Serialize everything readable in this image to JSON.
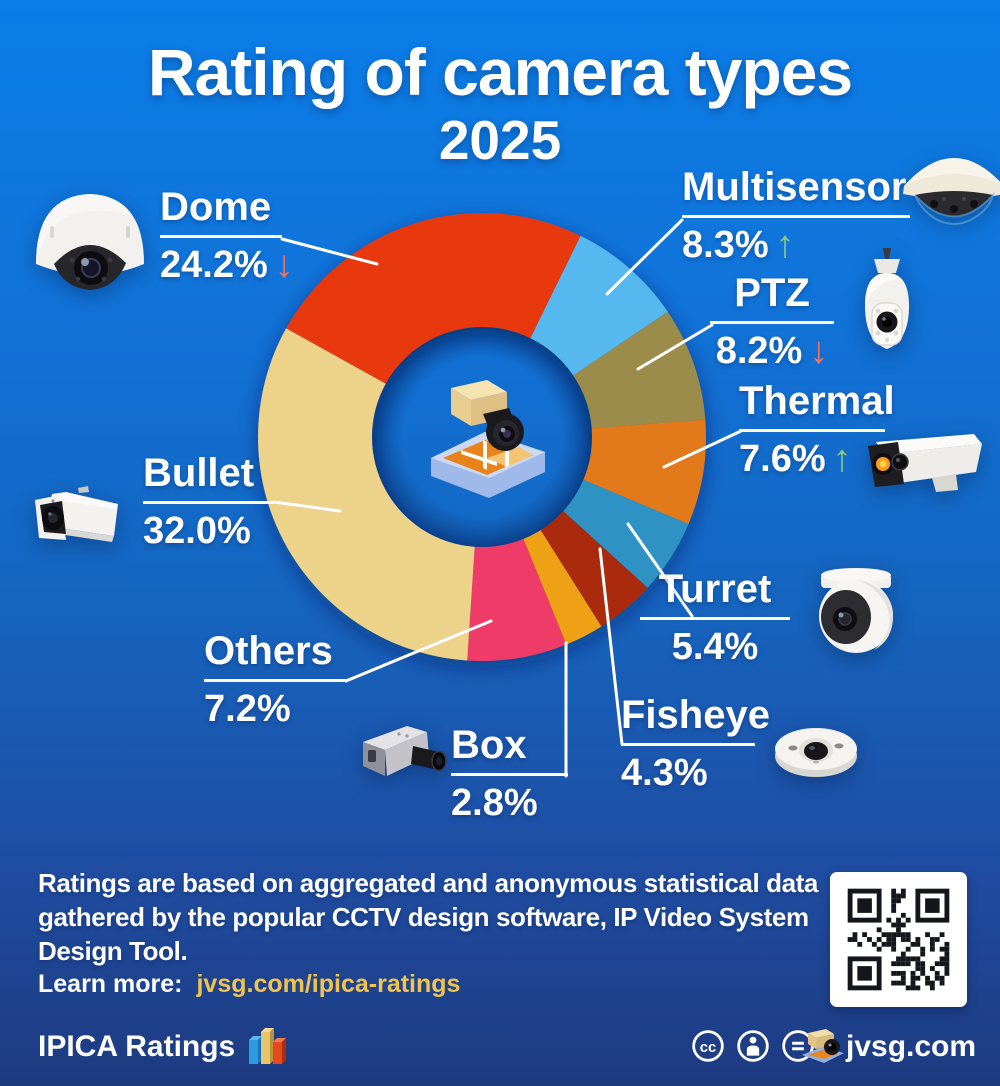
{
  "title": {
    "main": "Rating of camera types",
    "year": "2025"
  },
  "chart_data": {
    "type": "pie",
    "subtype": "donut",
    "title": "Rating of camera types 2025",
    "start_angle_deg": -61,
    "legend_position": "around",
    "slices": [
      {
        "label": "Dome",
        "value": 24.2,
        "display": "24.2%",
        "trend": "down",
        "arrow": "↓",
        "color": "#e8390e"
      },
      {
        "label": "Multisensor",
        "value": 8.3,
        "display": "8.3%",
        "trend": "up",
        "arrow": "↑",
        "color": "#55b8ee"
      },
      {
        "label": "PTZ",
        "value": 8.2,
        "display": "8.2%",
        "trend": "down",
        "arrow": "↓",
        "color": "#9c8c4b"
      },
      {
        "label": "Thermal",
        "value": 7.6,
        "display": "7.6%",
        "trend": "up",
        "arrow": "↑",
        "color": "#e27a1b"
      },
      {
        "label": "Turret",
        "value": 5.4,
        "display": "5.4%",
        "trend": "none",
        "arrow": "",
        "color": "#2e93c4"
      },
      {
        "label": "Fisheye",
        "value": 4.3,
        "display": "4.3%",
        "trend": "none",
        "arrow": "",
        "color": "#a92c0e"
      },
      {
        "label": "Box",
        "value": 2.8,
        "display": "2.8%",
        "trend": "none",
        "arrow": "",
        "color": "#efa112"
      },
      {
        "label": "Others",
        "value": 7.2,
        "display": "7.2%",
        "trend": "none",
        "arrow": "",
        "color": "#ef3a68"
      },
      {
        "label": "Bullet",
        "value": 32.0,
        "display": "32.0%",
        "trend": "none",
        "arrow": "",
        "color": "#edd289"
      }
    ],
    "center_icon": "design-tool-camera-floorplan-logo"
  },
  "cameras": [
    "dome-camera-photo",
    "multisensor-camera-photo",
    "ptz-camera-photo",
    "thermal-camera-photo",
    "turret-camera-photo",
    "fisheye-camera-photo",
    "box-camera-photo",
    "bullet-camera-photo"
  ],
  "footer": {
    "line1": "Ratings are based on aggregated and anonymous statistical data",
    "line2": "gathered by the popular CCTV design software, IP Video System",
    "line3": "Design Tool.",
    "learn_more_label": "Learn more:",
    "learn_more_link": "jvsg.com/ipica-ratings"
  },
  "branding": {
    "ratings_name": "IPICA Ratings",
    "ratings_icon": "bar-chart-icon",
    "site": "jvsg.com",
    "site_icon": "jvsg-camera-logo",
    "license_icons": [
      "cc-icon",
      "cc-by-icon",
      "cc-nd-icon"
    ],
    "qr": "qr-code"
  },
  "colors": {
    "background_top": "#0b7de8",
    "background_bottom": "#1d3a80",
    "text": "#ffffff",
    "link_gold": "#f0c34e",
    "arrow_up": "#8fc97c",
    "arrow_down": "#f2705f"
  }
}
